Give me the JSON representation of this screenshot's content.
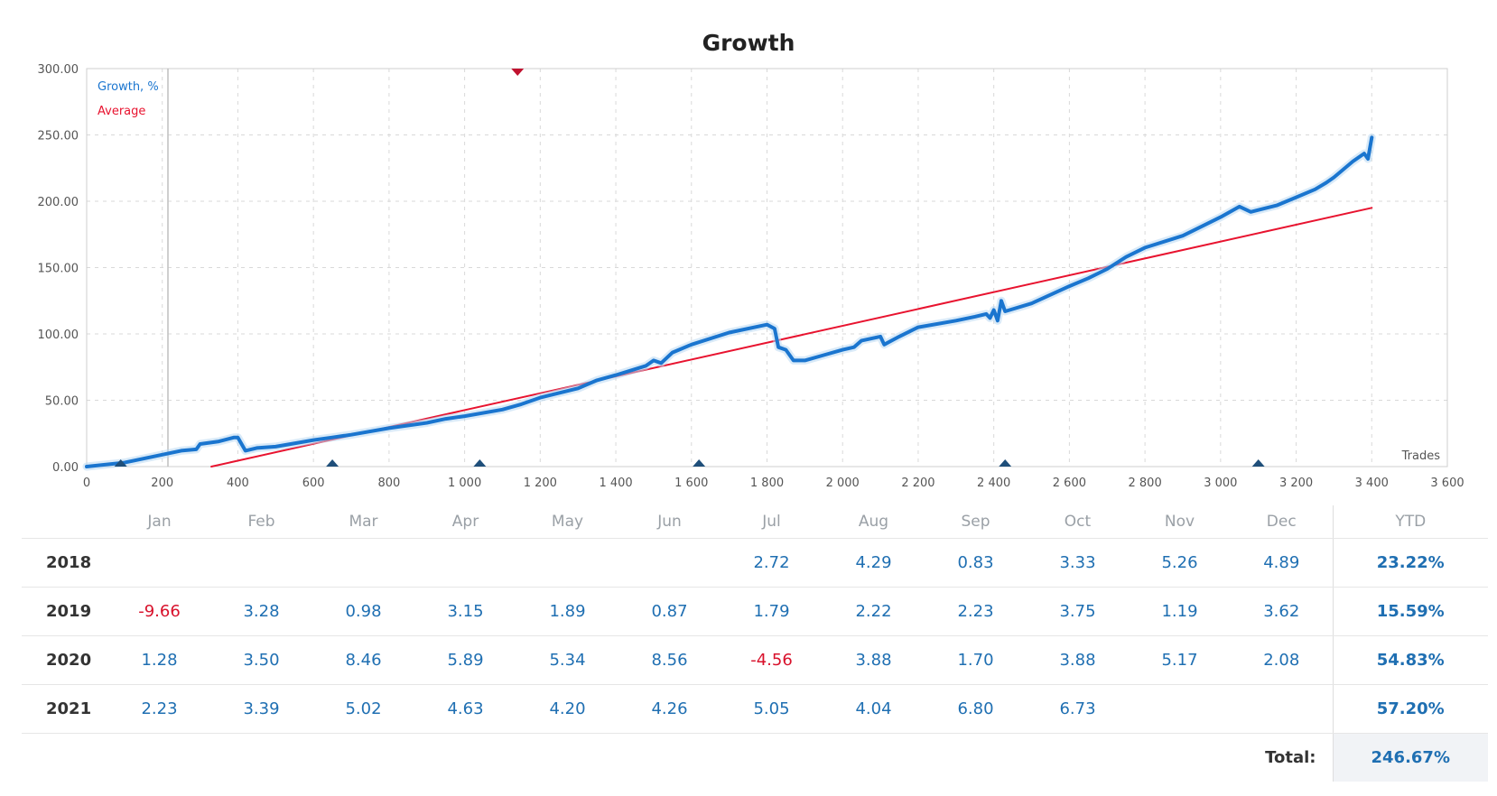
{
  "chart_data": {
    "type": "line",
    "title": "Growth",
    "xlabel": "Trades",
    "ylabel": "",
    "xlim": [
      0,
      3600
    ],
    "ylim": [
      0,
      300
    ],
    "x_ticks": [
      0,
      200,
      400,
      600,
      800,
      1000,
      1200,
      1400,
      1600,
      1800,
      2000,
      2200,
      2400,
      2600,
      2800,
      3000,
      3200,
      3400,
      3600
    ],
    "x_tick_labels": [
      "0",
      "200",
      "400",
      "600",
      "800",
      "1 000",
      "1 200",
      "1 400",
      "1 600",
      "1 800",
      "2 000",
      "2 200",
      "2 400",
      "2 600",
      "2 800",
      "3 000",
      "3 200",
      "3 400",
      "3 600"
    ],
    "y_ticks": [
      0,
      50,
      100,
      150,
      200,
      250,
      300
    ],
    "y_tick_labels": [
      "0.00",
      "50.00",
      "100.00",
      "150.00",
      "200.00",
      "250.00",
      "300.00"
    ],
    "grid": true,
    "legend_position": "top-left",
    "series": [
      {
        "name": "Growth, %",
        "color": "#1a75cf",
        "points": [
          [
            0,
            0
          ],
          [
            100,
            3
          ],
          [
            200,
            9
          ],
          [
            250,
            12
          ],
          [
            290,
            13
          ],
          [
            300,
            17
          ],
          [
            350,
            19
          ],
          [
            390,
            22
          ],
          [
            400,
            22
          ],
          [
            420,
            12
          ],
          [
            450,
            14
          ],
          [
            500,
            15
          ],
          [
            600,
            20
          ],
          [
            650,
            22
          ],
          [
            700,
            24
          ],
          [
            800,
            29
          ],
          [
            900,
            33
          ],
          [
            950,
            36
          ],
          [
            1000,
            38
          ],
          [
            1100,
            43
          ],
          [
            1150,
            47
          ],
          [
            1200,
            52
          ],
          [
            1300,
            59
          ],
          [
            1350,
            65
          ],
          [
            1400,
            69
          ],
          [
            1480,
            76
          ],
          [
            1500,
            80
          ],
          [
            1520,
            78
          ],
          [
            1550,
            86
          ],
          [
            1600,
            92
          ],
          [
            1700,
            101
          ],
          [
            1800,
            107
          ],
          [
            1820,
            104
          ],
          [
            1830,
            90
          ],
          [
            1850,
            88
          ],
          [
            1870,
            80
          ],
          [
            1900,
            80
          ],
          [
            1950,
            84
          ],
          [
            2000,
            88
          ],
          [
            2030,
            90
          ],
          [
            2050,
            95
          ],
          [
            2100,
            98
          ],
          [
            2110,
            92
          ],
          [
            2150,
            98
          ],
          [
            2200,
            105
          ],
          [
            2300,
            110
          ],
          [
            2350,
            113
          ],
          [
            2380,
            115
          ],
          [
            2390,
            112
          ],
          [
            2400,
            118
          ],
          [
            2410,
            110
          ],
          [
            2420,
            125
          ],
          [
            2430,
            117
          ],
          [
            2500,
            123
          ],
          [
            2600,
            136
          ],
          [
            2650,
            142
          ],
          [
            2700,
            149
          ],
          [
            2750,
            158
          ],
          [
            2800,
            165
          ],
          [
            2900,
            174
          ],
          [
            3000,
            188
          ],
          [
            3050,
            196
          ],
          [
            3080,
            192
          ],
          [
            3150,
            197
          ],
          [
            3200,
            203
          ],
          [
            3250,
            209
          ],
          [
            3280,
            214
          ],
          [
            3300,
            218
          ],
          [
            3350,
            230
          ],
          [
            3380,
            236
          ],
          [
            3390,
            232
          ],
          [
            3400,
            248
          ]
        ]
      },
      {
        "name": "Average",
        "color": "#e8132f",
        "points": [
          [
            330,
            0
          ],
          [
            3400,
            195
          ]
        ]
      }
    ],
    "markers": {
      "color": "#1f4f7a",
      "bottom_x": [
        90,
        650,
        1040,
        1620,
        2430,
        3100
      ],
      "top_x": [
        1140
      ],
      "top_color": "#c0122f"
    }
  },
  "table": {
    "columns": [
      "",
      "Jan",
      "Feb",
      "Mar",
      "Apr",
      "May",
      "Jun",
      "Jul",
      "Aug",
      "Sep",
      "Oct",
      "Nov",
      "Dec",
      "YTD"
    ],
    "rows": [
      {
        "year": "2018",
        "cells": [
          "",
          "",
          "",
          "",
          "",
          "",
          "2.72",
          "4.29",
          "0.83",
          "3.33",
          "5.26",
          "4.89"
        ],
        "ytd": "23.22%"
      },
      {
        "year": "2019",
        "cells": [
          "-9.66",
          "3.28",
          "0.98",
          "3.15",
          "1.89",
          "0.87",
          "1.79",
          "2.22",
          "2.23",
          "3.75",
          "1.19",
          "3.62"
        ],
        "ytd": "15.59%"
      },
      {
        "year": "2020",
        "cells": [
          "1.28",
          "3.50",
          "8.46",
          "5.89",
          "5.34",
          "8.56",
          "-4.56",
          "3.88",
          "1.70",
          "3.88",
          "5.17",
          "2.08"
        ],
        "ytd": "54.83%"
      },
      {
        "year": "2021",
        "cells": [
          "2.23",
          "3.39",
          "5.02",
          "4.63",
          "4.20",
          "4.26",
          "5.05",
          "4.04",
          "6.80",
          "6.73",
          "",
          ""
        ],
        "ytd": "57.20%"
      }
    ],
    "total_label": "Total:",
    "total_value": "246.67%"
  }
}
